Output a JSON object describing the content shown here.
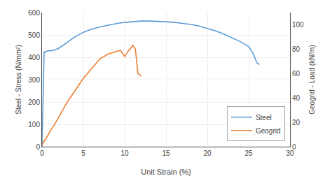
{
  "chart_data": {
    "type": "line",
    "xlabel": "Unit Strain (%)",
    "ylabel": "Steel - Stress (N/mm²)",
    "y2label": "Geogrid - Load (kN/m)",
    "xlim": [
      0,
      30
    ],
    "xticks": [
      0,
      5,
      10,
      15,
      20,
      25,
      30
    ],
    "ylim": [
      0,
      600
    ],
    "yticks": [
      0,
      100,
      200,
      300,
      400,
      500,
      600
    ],
    "y2lim": [
      0,
      110
    ],
    "y2ticks": [
      0,
      20,
      40,
      60,
      80,
      100
    ],
    "grid": true,
    "legend": "lower right",
    "series": [
      {
        "name": "Steel",
        "color": "#5B9BD5",
        "x": [
          0.0,
          0.05,
          0.1,
          0.15,
          0.2,
          0.25,
          0.3,
          0.35,
          0.4,
          0.5,
          0.6,
          0.7,
          0.8,
          1.0,
          1.2,
          1.5,
          2.0,
          3.0,
          4.0,
          5.0,
          6.0,
          7.0,
          8.0,
          9.0,
          10.0,
          11.0,
          12.0,
          13.0,
          14.0,
          15.0,
          16.0,
          17.0,
          18.0,
          19.0,
          20.0,
          21.0,
          22.0,
          23.0,
          24.0,
          25.0,
          25.5,
          26.0,
          26.3
        ],
        "values": [
          0,
          100,
          200,
          320,
          410,
          420,
          425,
          422,
          425,
          427,
          428,
          428,
          428,
          428,
          430,
          432,
          440,
          465,
          492,
          512,
          526,
          536,
          544,
          551,
          556,
          560,
          562,
          562,
          561,
          559,
          556,
          552,
          547,
          540,
          530,
          518,
          504,
          488,
          470,
          448,
          420,
          375,
          368
        ]
      },
      {
        "name": "Geogrid",
        "color": "#ED7D31",
        "axis": "y2",
        "x": [
          0.0,
          0.3,
          0.6,
          1.0,
          1.5,
          2.0,
          2.5,
          3.0,
          3.5,
          4.0,
          4.5,
          5.0,
          5.5,
          6.0,
          6.5,
          7.0,
          7.5,
          8.0,
          8.5,
          9.0,
          9.5,
          10.0,
          10.5,
          11.0,
          11.3,
          11.6,
          12.0
        ],
        "values": [
          1,
          5,
          8,
          13,
          18,
          24,
          30,
          36,
          41,
          46,
          51,
          56,
          60,
          64,
          68,
          72,
          74,
          76,
          77,
          78,
          79,
          74,
          79,
          83,
          80,
          60,
          58
        ]
      }
    ]
  }
}
